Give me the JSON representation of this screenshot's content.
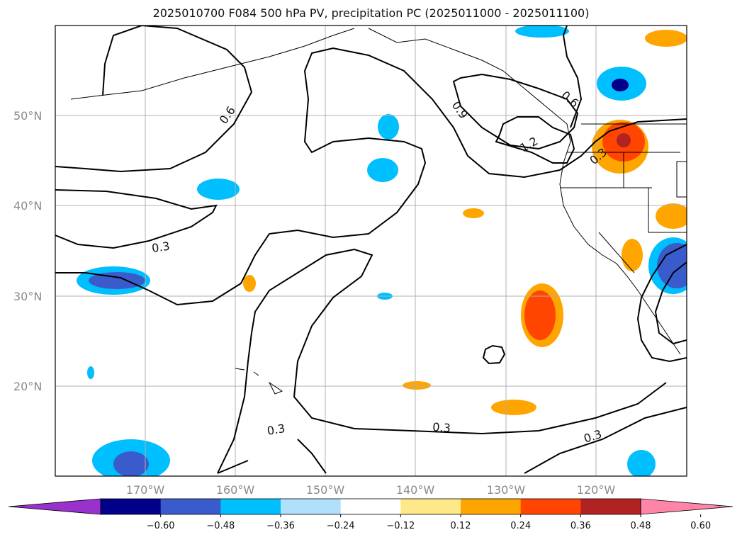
{
  "title": "2025010700 F084 500 hPa PV, precipitation PC (2025011000 - 2025011100)",
  "chart_data": {
    "type": "map-contour",
    "title": "2025010700 F084 500 hPa PV, precipitation PC (2025011000 - 2025011100)",
    "lon_range": [
      -180,
      -110
    ],
    "lat_range": [
      10,
      60
    ],
    "lon_ticks": [
      "170°W",
      "160°W",
      "150°W",
      "140°W",
      "130°W",
      "120°W"
    ],
    "lat_ticks": [
      "50°N",
      "40°N",
      "30°N",
      "20°N"
    ],
    "grid": true,
    "contour_line_labels": [
      "0.3",
      "0.3",
      "0.3",
      "0.3",
      "0.6",
      "0.6",
      "0.9",
      "1.2",
      "0.3"
    ],
    "contour_levels": [
      0.3,
      0.6,
      0.9,
      1.2
    ],
    "colorbar": {
      "orientation": "horizontal",
      "extend": "both",
      "tick_labels": [
        "−0.60",
        "−0.48",
        "−0.36",
        "−0.24",
        "−0.12",
        "0.12",
        "0.24",
        "0.36",
        "0.48",
        "0.60"
      ],
      "colors": [
        "#9932CC",
        "#00008B",
        "#3A5BCB",
        "#00BFFF",
        "#B0E0FA",
        "#FFFFFF",
        "#FFE88A",
        "#FFA500",
        "#FF4500",
        "#B22222",
        "#FF85A8"
      ]
    }
  }
}
